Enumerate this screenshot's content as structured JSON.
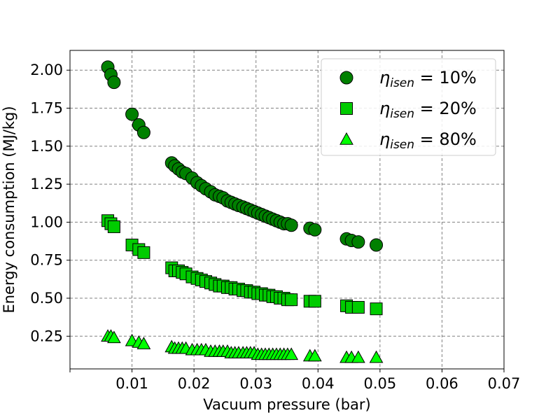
{
  "chart_data": {
    "type": "scatter",
    "title": "",
    "xlabel": "Vacuum pressure (bar)",
    "ylabel": "Energy consumption (MJ/kg)",
    "xlim": [
      0.0,
      0.07
    ],
    "ylim": [
      0.035,
      2.13
    ],
    "x_ticks": [
      0.01,
      0.02,
      0.03,
      0.04,
      0.05,
      0.06,
      0.07
    ],
    "x_tick_labels": [
      "0.01",
      "0.02",
      "0.03",
      "0.04",
      "0.05",
      "0.06",
      "0.07"
    ],
    "y_ticks": [
      0.25,
      0.5,
      0.75,
      1.0,
      1.25,
      1.5,
      1.75,
      2.0
    ],
    "y_tick_labels": [
      "0.25",
      "0.50",
      "0.75",
      "1.00",
      "1.25",
      "1.50",
      "1.75",
      "2.00"
    ],
    "grid": true,
    "legend_position": "top-right",
    "series": [
      {
        "name": "10%",
        "legend_symbol": "η",
        "legend_subscript": "isen",
        "legend_eq": " = ",
        "marker": "circle",
        "color": "#008000",
        "x": [
          0.0061,
          0.0066,
          0.0071,
          0.01,
          0.0111,
          0.0119,
          0.0164,
          0.0169,
          0.0175,
          0.0181,
          0.0187,
          0.0197,
          0.0205,
          0.0212,
          0.0219,
          0.0227,
          0.0234,
          0.0241,
          0.0247,
          0.0254,
          0.026,
          0.0266,
          0.0272,
          0.0279,
          0.0285,
          0.0291,
          0.0297,
          0.0303,
          0.0309,
          0.0315,
          0.0321,
          0.0327,
          0.0333,
          0.0339,
          0.0345,
          0.0351,
          0.0357,
          0.0387,
          0.0395,
          0.0446,
          0.0454,
          0.0465,
          0.0494
        ],
        "y": [
          2.02,
          1.97,
          1.92,
          1.71,
          1.64,
          1.59,
          1.39,
          1.37,
          1.35,
          1.33,
          1.32,
          1.29,
          1.26,
          1.24,
          1.22,
          1.2,
          1.18,
          1.17,
          1.16,
          1.14,
          1.13,
          1.12,
          1.11,
          1.1,
          1.09,
          1.08,
          1.07,
          1.06,
          1.05,
          1.04,
          1.03,
          1.02,
          1.01,
          1.0,
          0.99,
          0.99,
          0.98,
          0.96,
          0.95,
          0.89,
          0.88,
          0.87,
          0.85
        ]
      },
      {
        "name": "20%",
        "legend_symbol": "η",
        "legend_subscript": "isen",
        "legend_eq": " = ",
        "marker": "square",
        "color": "#00cc00",
        "x": [
          0.0061,
          0.0066,
          0.0071,
          0.01,
          0.0111,
          0.0119,
          0.0164,
          0.0169,
          0.0175,
          0.0181,
          0.0187,
          0.0197,
          0.0205,
          0.0212,
          0.0219,
          0.0227,
          0.0234,
          0.0241,
          0.0247,
          0.0254,
          0.026,
          0.0266,
          0.0272,
          0.0279,
          0.0285,
          0.0291,
          0.0297,
          0.0303,
          0.0309,
          0.0315,
          0.0321,
          0.0327,
          0.0333,
          0.0339,
          0.0345,
          0.0351,
          0.0357,
          0.0387,
          0.0395,
          0.0446,
          0.0454,
          0.0465,
          0.0494
        ],
        "y": [
          1.01,
          0.99,
          0.97,
          0.85,
          0.82,
          0.8,
          0.7,
          0.68,
          0.68,
          0.67,
          0.66,
          0.64,
          0.63,
          0.62,
          0.61,
          0.6,
          0.59,
          0.58,
          0.58,
          0.57,
          0.57,
          0.56,
          0.56,
          0.55,
          0.55,
          0.54,
          0.54,
          0.53,
          0.53,
          0.52,
          0.52,
          0.51,
          0.51,
          0.5,
          0.5,
          0.49,
          0.49,
          0.48,
          0.48,
          0.45,
          0.44,
          0.44,
          0.43
        ]
      },
      {
        "name": "80%",
        "legend_symbol": "η",
        "legend_subscript": "isen",
        "legend_eq": " = ",
        "marker": "triangle",
        "color": "#00ff00",
        "x": [
          0.0061,
          0.0066,
          0.0071,
          0.01,
          0.0111,
          0.0119,
          0.0164,
          0.0169,
          0.0175,
          0.0181,
          0.0187,
          0.0197,
          0.0205,
          0.0212,
          0.0219,
          0.0227,
          0.0234,
          0.0241,
          0.0247,
          0.0254,
          0.026,
          0.0266,
          0.0272,
          0.0279,
          0.0285,
          0.0291,
          0.0297,
          0.0303,
          0.0309,
          0.0315,
          0.0321,
          0.0327,
          0.0333,
          0.0339,
          0.0345,
          0.0351,
          0.0357,
          0.0387,
          0.0395,
          0.0446,
          0.0454,
          0.0465,
          0.0494
        ],
        "y": [
          0.25,
          0.25,
          0.24,
          0.22,
          0.21,
          0.2,
          0.18,
          0.17,
          0.17,
          0.17,
          0.17,
          0.16,
          0.16,
          0.16,
          0.16,
          0.15,
          0.15,
          0.15,
          0.15,
          0.15,
          0.14,
          0.14,
          0.14,
          0.14,
          0.14,
          0.14,
          0.14,
          0.13,
          0.13,
          0.13,
          0.13,
          0.13,
          0.13,
          0.13,
          0.13,
          0.13,
          0.13,
          0.12,
          0.12,
          0.11,
          0.11,
          0.11,
          0.11
        ]
      }
    ]
  }
}
